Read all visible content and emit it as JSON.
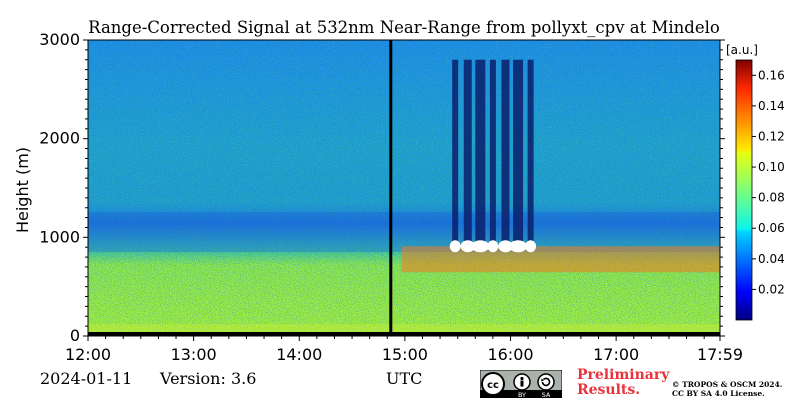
{
  "chart_data": {
    "type": "heatmap",
    "title": "Range-Corrected Signal at 532nm Near-Range from pollyxt_cpv at Mindelo",
    "ylabel": "Height (m)",
    "xlabel": "UTC",
    "x_ticks": [
      "12:00",
      "13:00",
      "14:00",
      "15:00",
      "16:00",
      "17:00",
      "17:59"
    ],
    "x_range": [
      "12:00",
      "17:59"
    ],
    "y_ticks": [
      0,
      1000,
      2000,
      3000
    ],
    "ylim": [
      0,
      3000
    ],
    "colorbar": {
      "unit": "[a.u.]",
      "ticks": [
        0.02,
        0.04,
        0.06,
        0.08,
        0.1,
        0.12,
        0.14,
        0.16
      ],
      "range": [
        0,
        0.17
      ],
      "colormap": "jet"
    },
    "features": {
      "data_gap_time": "14:52",
      "boundary_layer_top_m": 800,
      "cloud_base_m": 950,
      "cloud_period": [
        "15:25",
        "16:15"
      ]
    }
  },
  "footer": {
    "date": "2024-01-11",
    "version": "Version: 3.6",
    "utc_label": "UTC",
    "preliminary_line1": "Preliminary",
    "preliminary_line2": "Results.",
    "license_line1": "© TROPOS & OSCM 2024.",
    "license_line2": "CC BY SA 4.0 License.",
    "cc_by": "BY",
    "cc_sa": "SA"
  }
}
